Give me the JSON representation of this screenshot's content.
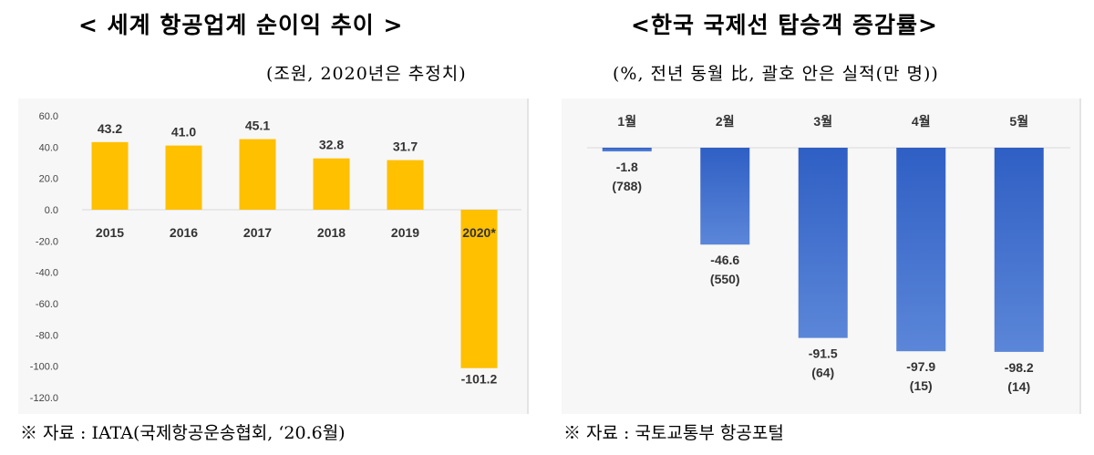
{
  "left": {
    "title": "< 세계 항공업계 순이익 추이 >",
    "unit": "(조원, 2020년은 추정치)",
    "source": "※ 자료 : IATA(국제항공운송협회, ‘20.6월)"
  },
  "right": {
    "title": "<한국 국제선 탑승객 증감률>",
    "unit": "(%, 전년 동월 比, 괄호 안은 실적(만 명))",
    "source": "※ 자료 : 국토교통부 항공포털"
  },
  "colors": {
    "left_bar": "#ffc000",
    "right_bar_top": "#2f5fc4",
    "right_bar_bottom": "#5b86d8"
  },
  "chart_data": [
    {
      "type": "bar",
      "title": "< 세계 항공업계 순이익 추이 >",
      "unit": "(조원, 2020년은 추정치)",
      "categories": [
        "2015",
        "2016",
        "2017",
        "2018",
        "2019",
        "2020*"
      ],
      "values": [
        43.2,
        41.0,
        45.1,
        32.8,
        31.7,
        -101.2
      ],
      "value_labels": [
        "43.2",
        "41.0",
        "45.1",
        "32.8",
        "31.7",
        "-101.2"
      ],
      "ylim": [
        -120,
        60
      ],
      "yticks": [
        "60.0",
        "40.0",
        "20.0",
        "0.0",
        "-20.0",
        "-40.0",
        "-60.0",
        "-80.0",
        "-100.0",
        "-120.0"
      ],
      "grid": false,
      "legend": "none"
    },
    {
      "type": "bar",
      "title": "<한국 국제선 탑승객 증감률>",
      "unit": "(%, 전년 동월 比, 괄호 안은 실적(만 명))",
      "categories": [
        "1월",
        "2월",
        "3월",
        "4월",
        "5월"
      ],
      "values": [
        -1.8,
        -46.6,
        -91.5,
        -97.9,
        -98.2
      ],
      "value_labels": [
        "-1.8",
        "-46.6",
        "-91.5",
        "-97.9",
        "-98.2"
      ],
      "sub_labels": [
        "(788)",
        "(550)",
        "(64)",
        "(15)",
        "(14)"
      ],
      "ylim": [
        -100,
        0
      ],
      "grid": false,
      "legend": "none"
    }
  ]
}
